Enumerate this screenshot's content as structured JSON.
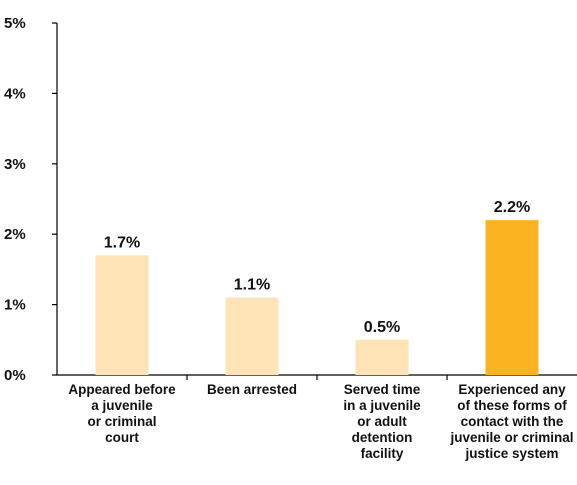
{
  "chart_data": {
    "type": "bar",
    "title": "",
    "xlabel": "",
    "ylabel": "",
    "ylim": [
      0,
      5
    ],
    "yticks": [
      "0%",
      "1%",
      "2%",
      "3%",
      "4%",
      "5%"
    ],
    "categories": [
      [
        "Appeared before",
        "a juvenile",
        "or criminal",
        "court"
      ],
      [
        "Been arrested"
      ],
      [
        "Served time",
        "in a juvenile",
        "or adult",
        "detention",
        "facility"
      ],
      [
        "Experienced any",
        "of these forms of",
        "contact with the",
        "juvenile or criminal",
        "justice system"
      ]
    ],
    "values": [
      1.7,
      1.1,
      0.5,
      2.2
    ],
    "data_labels": [
      "1.7%",
      "1.1%",
      "0.5%",
      "2.2%"
    ],
    "colors": [
      "#fde3b5",
      "#fde3b5",
      "#fde3b5",
      "#fbb41f"
    ],
    "grid": false,
    "legend": "none"
  }
}
